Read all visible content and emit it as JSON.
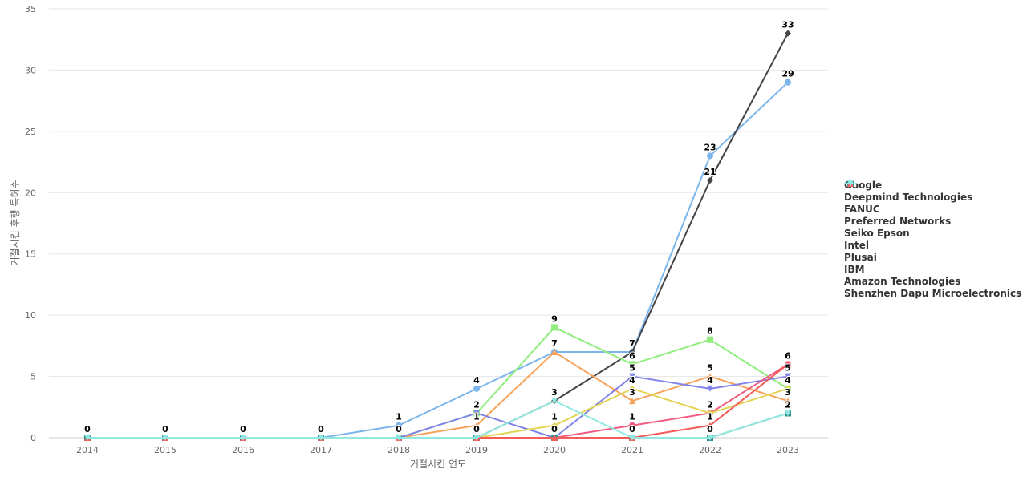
{
  "chart_data": {
    "type": "line",
    "title": "",
    "xlabel": "거절시킨 연도",
    "ylabel": "거절시킨 후행 특허수",
    "x": [
      "2014",
      "2015",
      "2016",
      "2017",
      "2018",
      "2019",
      "2020",
      "2021",
      "2022",
      "2023"
    ],
    "ylim": [
      0,
      35
    ],
    "yticks": [
      0,
      5,
      10,
      15,
      20,
      25,
      30,
      35
    ],
    "grid": true,
    "legend_position": "right",
    "series": [
      {
        "name": "Google",
        "color": "#7cb5ec",
        "marker": "circle",
        "values": [
          0,
          0,
          0,
          0,
          1,
          4,
          7,
          7,
          23,
          29
        ],
        "labeled": true
      },
      {
        "name": "Deepmind Technologies",
        "color": "#434348",
        "marker": "diamond",
        "values": [
          0,
          0,
          0,
          0,
          0,
          0,
          3,
          7,
          21,
          33
        ],
        "labeled": true
      },
      {
        "name": "FANUC",
        "color": "#90ed7d",
        "marker": "square",
        "values": [
          0,
          0,
          0,
          0,
          0,
          2,
          9,
          6,
          8,
          4
        ],
        "labeled": true
      },
      {
        "name": "Preferred Networks",
        "color": "#f7a35c",
        "marker": "triangle",
        "values": [
          0,
          0,
          0,
          0,
          0,
          1,
          7,
          3,
          5,
          3
        ],
        "labeled": true
      },
      {
        "name": "Seiko Epson",
        "color": "#8085e9",
        "marker": "triangle-down",
        "values": [
          0,
          0,
          0,
          0,
          0,
          2,
          0,
          5,
          4,
          5
        ],
        "labeled": true
      },
      {
        "name": "Intel",
        "color": "#f15c80",
        "marker": "circle",
        "values": [
          0,
          0,
          0,
          0,
          0,
          0,
          0,
          1,
          2,
          6
        ],
        "labeled": true
      },
      {
        "name": "Plusai",
        "color": "#e4d354",
        "marker": "diamond",
        "values": [
          0,
          0,
          0,
          0,
          0,
          0,
          1,
          4,
          2,
          4
        ],
        "labeled": true
      },
      {
        "name": "IBM",
        "color": "#2b908f",
        "marker": "square",
        "values": [
          0,
          0,
          0,
          0,
          0,
          0,
          0,
          0,
          0,
          2
        ],
        "labeled": false
      },
      {
        "name": "Amazon Technologies",
        "color": "#f45b5b",
        "marker": "triangle",
        "values": [
          0,
          0,
          0,
          0,
          0,
          0,
          0,
          0,
          1,
          6
        ],
        "labeled": true
      },
      {
        "name": "Shenzhen Dapu Microelectronics",
        "color": "#91e8e1",
        "marker": "triangle-down",
        "values": [
          0,
          0,
          0,
          0,
          0,
          0,
          3,
          0,
          0,
          2
        ],
        "labeled": true
      }
    ]
  }
}
